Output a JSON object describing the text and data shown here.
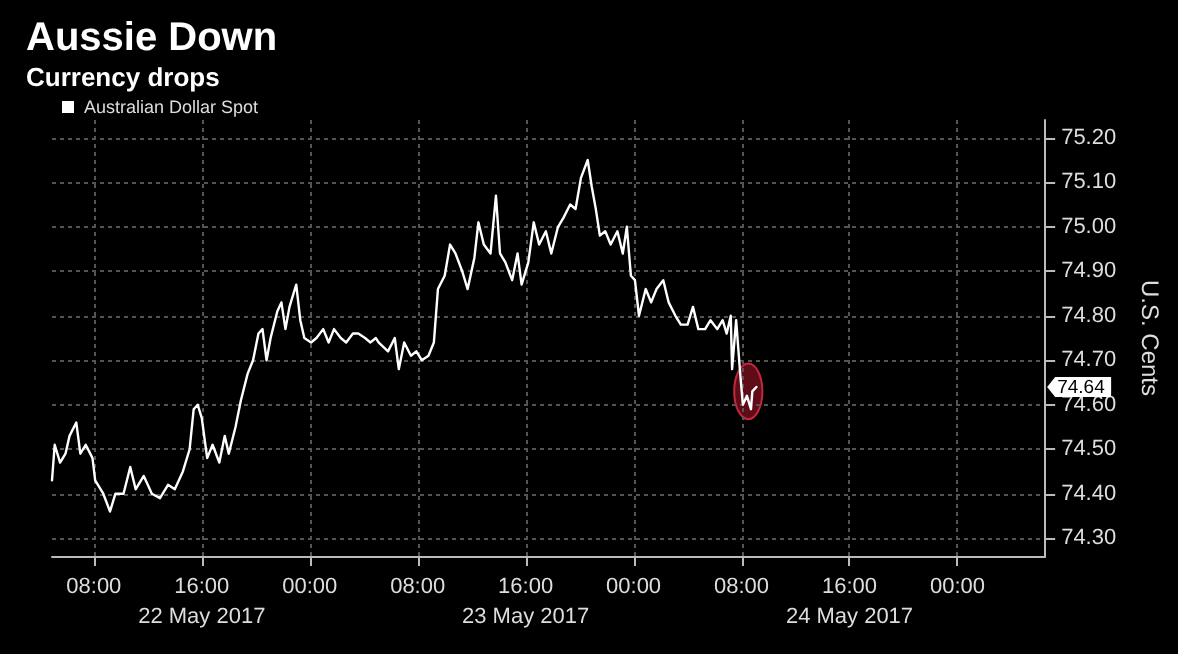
{
  "chart_data": {
    "type": "line",
    "title": "Aussie Down",
    "subtitle": "Currency drops",
    "ylabel": "U.S. Cents",
    "x": [
      "2017-05-22T04:54",
      "2017-05-22T05:06",
      "2017-05-22T05:30",
      "2017-05-22T05:54",
      "2017-05-22T06:12",
      "2017-05-22T06:42",
      "2017-05-22T07:00",
      "2017-05-22T07:24",
      "2017-05-22T07:54",
      "2017-05-22T08:06",
      "2017-05-22T08:42",
      "2017-05-22T09:12",
      "2017-05-22T09:36",
      "2017-05-22T10:12",
      "2017-05-22T10:42",
      "2017-05-22T11:06",
      "2017-05-22T11:42",
      "2017-05-22T12:18",
      "2017-05-22T12:54",
      "2017-05-22T13:30",
      "2017-05-22T14:00",
      "2017-05-22T14:36",
      "2017-05-22T15:06",
      "2017-05-22T15:24",
      "2017-05-22T15:42",
      "2017-05-22T16:00",
      "2017-05-22T16:24",
      "2017-05-22T16:48",
      "2017-05-22T17:18",
      "2017-05-22T17:42",
      "2017-05-22T18:00",
      "2017-05-22T18:30",
      "2017-05-22T18:54",
      "2017-05-22T19:24",
      "2017-05-22T19:48",
      "2017-05-22T20:12",
      "2017-05-22T20:30",
      "2017-05-22T20:48",
      "2017-05-22T21:06",
      "2017-05-22T21:36",
      "2017-05-22T21:54",
      "2017-05-22T22:12",
      "2017-05-22T22:30",
      "2017-05-22T22:42",
      "2017-05-22T23:00",
      "2017-05-22T23:18",
      "2017-05-22T23:36",
      "2017-05-23T00:06",
      "2017-05-23T00:30",
      "2017-05-23T01:00",
      "2017-05-23T01:24",
      "2017-05-23T01:48",
      "2017-05-23T02:18",
      "2017-05-23T02:42",
      "2017-05-23T03:12",
      "2017-05-23T03:36",
      "2017-05-23T04:06",
      "2017-05-23T04:30",
      "2017-05-23T04:54",
      "2017-05-23T05:06",
      "2017-05-23T05:48",
      "2017-05-23T06:18",
      "2017-05-23T06:36",
      "2017-05-23T07:00",
      "2017-05-23T07:30",
      "2017-05-23T07:54",
      "2017-05-23T08:18",
      "2017-05-23T08:48",
      "2017-05-23T09:12",
      "2017-05-23T09:30",
      "2017-05-23T10:00",
      "2017-05-23T10:24",
      "2017-05-23T10:48",
      "2017-05-23T11:18",
      "2017-05-23T11:42",
      "2017-05-23T12:12",
      "2017-05-23T12:30",
      "2017-05-23T12:54",
      "2017-05-23T13:24",
      "2017-05-23T13:48",
      "2017-05-23T14:06",
      "2017-05-23T14:30",
      "2017-05-23T15:00",
      "2017-05-23T15:24",
      "2017-05-23T15:42",
      "2017-05-23T16:12",
      "2017-05-23T16:36",
      "2017-05-23T17:00",
      "2017-05-23T17:30",
      "2017-05-23T17:54",
      "2017-05-23T18:24",
      "2017-05-23T18:48",
      "2017-05-23T19:18",
      "2017-05-23T19:42",
      "2017-05-23T20:06",
      "2017-05-23T20:36",
      "2017-05-23T20:54",
      "2017-05-23T21:12",
      "2017-05-23T21:30",
      "2017-05-23T21:54",
      "2017-05-23T22:18",
      "2017-05-23T22:48",
      "2017-05-23T23:12",
      "2017-05-23T23:30",
      "2017-05-23T23:48",
      "2017-05-24T00:06",
      "2017-05-24T00:24",
      "2017-05-24T00:54",
      "2017-05-24T01:18",
      "2017-05-24T01:42",
      "2017-05-24T02:12",
      "2017-05-24T02:36",
      "2017-05-24T03:06",
      "2017-05-24T03:30",
      "2017-05-24T04:00",
      "2017-05-24T04:24",
      "2017-05-24T04:48",
      "2017-05-24T05:18",
      "2017-05-24T05:42",
      "2017-05-24T06:12",
      "2017-05-24T06:36",
      "2017-05-24T06:54",
      "2017-05-24T07:12",
      "2017-05-24T07:18",
      "2017-05-24T07:36",
      "2017-05-24T07:54",
      "2017-05-24T08:06",
      "2017-05-24T08:24",
      "2017-05-24T08:42",
      "2017-05-24T08:48",
      "2017-05-24T09:06"
    ],
    "series": [
      {
        "name": "Australian Dollar Spot",
        "color": "#ffffff",
        "values": [
          74.43,
          74.51,
          74.47,
          74.49,
          74.53,
          74.56,
          74.49,
          74.51,
          74.48,
          74.43,
          74.4,
          74.36,
          74.4,
          74.4,
          74.46,
          74.41,
          74.44,
          74.4,
          74.39,
          74.42,
          74.41,
          74.45,
          74.5,
          74.59,
          74.6,
          74.57,
          74.48,
          74.51,
          74.47,
          74.53,
          74.49,
          74.55,
          74.61,
          74.67,
          74.7,
          74.76,
          74.77,
          74.7,
          74.75,
          74.81,
          74.83,
          74.77,
          74.82,
          74.84,
          74.87,
          74.79,
          74.75,
          74.74,
          74.75,
          74.77,
          74.74,
          74.77,
          74.75,
          74.74,
          74.76,
          74.76,
          74.75,
          74.74,
          74.75,
          74.74,
          74.72,
          74.75,
          74.68,
          74.74,
          74.71,
          74.72,
          74.7,
          74.71,
          74.74,
          74.86,
          74.89,
          74.96,
          74.94,
          74.9,
          74.86,
          74.93,
          75.01,
          74.96,
          74.94,
          75.07,
          74.94,
          74.92,
          74.88,
          74.94,
          74.87,
          74.92,
          75.01,
          74.96,
          74.99,
          74.94,
          75.0,
          75.02,
          75.05,
          75.04,
          75.11,
          75.15,
          75.09,
          75.04,
          74.98,
          74.99,
          74.96,
          74.99,
          74.94,
          75.0,
          74.89,
          74.88,
          74.8,
          74.86,
          74.83,
          74.86,
          74.88,
          74.83,
          74.8,
          74.78,
          74.78,
          74.82,
          74.77,
          74.77,
          74.79,
          74.77,
          74.79,
          74.76,
          74.8,
          74.68,
          74.79,
          74.67,
          74.6,
          74.62,
          74.59,
          74.63,
          74.64
        ]
      }
    ],
    "xlim": [
      "2017-05-22T04:54",
      "2017-05-25T06:30"
    ],
    "xticks": [
      {
        "value": "2017-05-22T08:00",
        "label": "08:00"
      },
      {
        "value": "2017-05-22T16:00",
        "label": "16:00\n22 May 2017"
      },
      {
        "value": "2017-05-23T00:00",
        "label": "00:00"
      },
      {
        "value": "2017-05-23T08:00",
        "label": "08:00"
      },
      {
        "value": "2017-05-23T16:00",
        "label": "16:00\n23 May 2017"
      },
      {
        "value": "2017-05-24T00:00",
        "label": "00:00"
      },
      {
        "value": "2017-05-24T08:00",
        "label": "08:00"
      },
      {
        "value": "2017-05-24T16:00",
        "label": "16:00\n24 May 2017"
      },
      {
        "value": "2017-05-25T00:00",
        "label": "00:00"
      }
    ],
    "ylim": [
      74.26,
      75.24
    ],
    "yticks": [
      {
        "value": 74.3,
        "label": "74.30"
      },
      {
        "value": 74.4,
        "label": "74.40"
      },
      {
        "value": 74.5,
        "label": "74.50"
      },
      {
        "value": 74.6,
        "label": "74.60"
      },
      {
        "value": 74.7,
        "label": "74.70"
      },
      {
        "value": 74.8,
        "label": "74.80"
      },
      {
        "value": 74.9,
        "label": "74.90"
      },
      {
        "value": 75.0,
        "label": "75.00"
      },
      {
        "value": 75.1,
        "label": "75.10"
      },
      {
        "value": 75.2,
        "label": "75.20"
      }
    ],
    "annotations": [
      "74.64"
    ],
    "grid": true,
    "legend": "top left",
    "marker": "none",
    "line_style": "solid"
  }
}
